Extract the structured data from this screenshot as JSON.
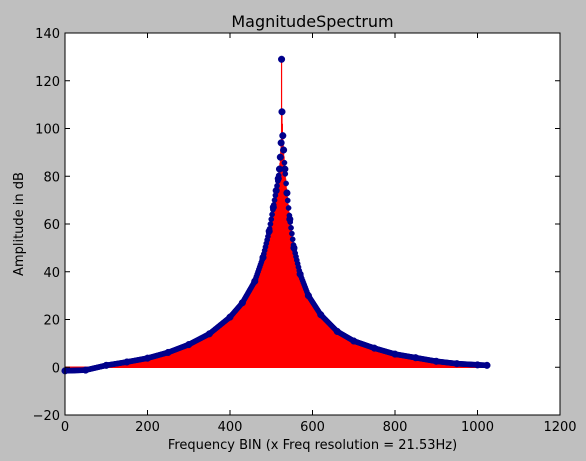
{
  "chart_data": {
    "type": "line",
    "title": "MagnitudeSpectrum",
    "xlabel": "Frequency BIN (x Freq resolution = 21.53Hz)",
    "ylabel": "Amplitude in dB",
    "xlim": [
      0,
      1200
    ],
    "ylim": [
      -20,
      140
    ],
    "xticks": [
      0,
      200,
      400,
      600,
      800,
      1000,
      1200
    ],
    "yticks": [
      -20,
      0,
      20,
      40,
      60,
      80,
      100,
      120,
      140
    ],
    "x_tick_labels": [
      "0",
      "200",
      "400",
      "600",
      "800",
      "1000",
      "1200"
    ],
    "y_tick_labels": [
      "−20",
      "0",
      "20",
      "40",
      "60",
      "80",
      "100",
      "120",
      "140"
    ],
    "grid": false,
    "series": [
      {
        "style": "stem",
        "color": "#ff0000",
        "marker_color": "#00008b",
        "x": [
          0,
          50,
          100,
          150,
          200,
          250,
          300,
          350,
          400,
          430,
          460,
          480,
          495,
          505,
          512,
          517,
          520,
          522,
          524,
          525,
          526,
          528,
          530,
          533,
          538,
          545,
          555,
          570,
          590,
          620,
          660,
          700,
          750,
          800,
          850,
          900,
          950,
          1000,
          1023
        ],
        "values": [
          -1.5,
          -1.2,
          0.8,
          2.2,
          3.8,
          6.2,
          9.5,
          14,
          21,
          27,
          36,
          46,
          57,
          67,
          74,
          79,
          83,
          88,
          94,
          129,
          107,
          97,
          91,
          83,
          73,
          62,
          50,
          39,
          30,
          22,
          15,
          11,
          8,
          5.5,
          4,
          2.5,
          1.5,
          1,
          0.8
        ]
      }
    ]
  }
}
